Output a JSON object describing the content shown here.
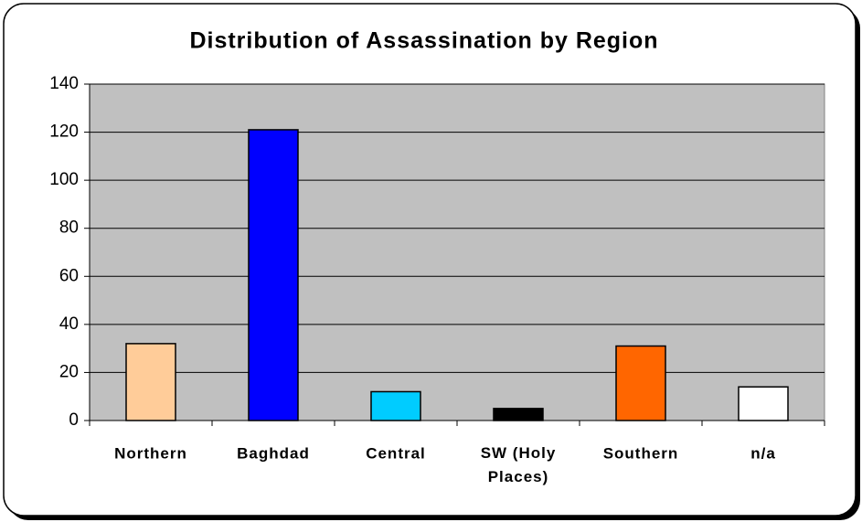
{
  "chart_data": {
    "type": "bar",
    "title": "Distribution of Assassination by Region",
    "categories": [
      "Northern",
      "Baghdad",
      "Central",
      "SW (Holy Places)",
      "Southern",
      "n/a"
    ],
    "values": [
      32,
      121,
      12,
      5,
      31,
      14
    ],
    "colors": [
      "#ffcc99",
      "#0000ff",
      "#00ccff",
      "#000000",
      "#ff6600",
      "#ffffff"
    ],
    "ylim": [
      0,
      140
    ],
    "yticks": [
      0,
      20,
      40,
      60,
      80,
      100,
      120,
      140
    ],
    "grid": true
  }
}
